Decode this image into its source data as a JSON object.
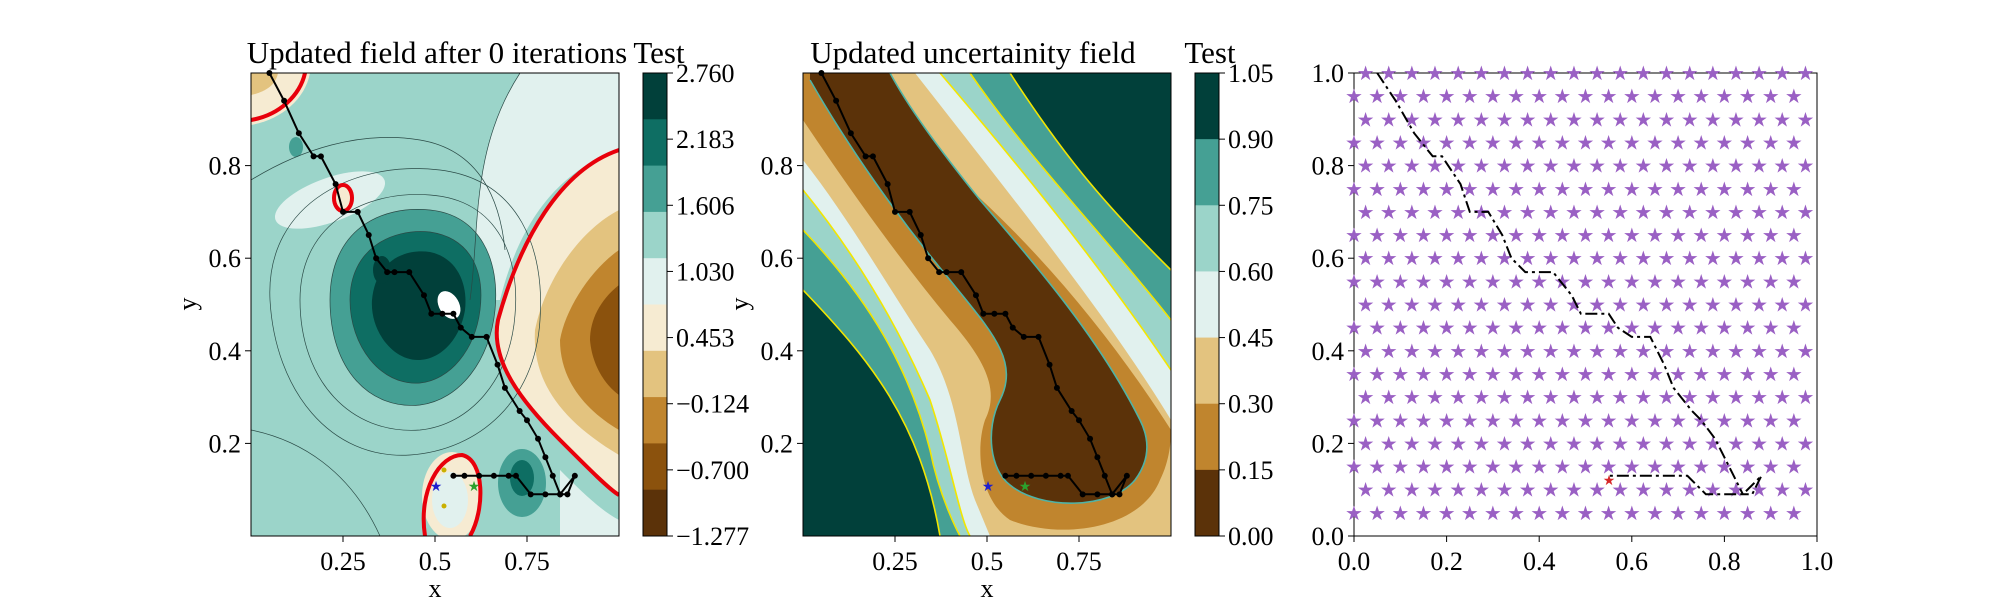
{
  "panels": [
    {
      "title": "Updated field after 0 iterations",
      "xlabel": "x",
      "ylabel": "y",
      "xticks": [
        0.25,
        0.5,
        0.75
      ],
      "yticks": [
        0.2,
        0.4,
        0.6,
        0.8
      ],
      "xlim": [
        0.0,
        1.0
      ],
      "ylim": [
        0.0,
        1.0
      ],
      "colorbar": {
        "title": "Test",
        "ticks": [
          "2.760",
          "2.183",
          "1.606",
          "1.030",
          "0.453",
          "−0.124",
          "−0.700",
          "−1.277"
        ],
        "colors": [
          "#01403a",
          "#0e6e63",
          "#45a094",
          "#9bd4c9",
          "#e1f1ee",
          "#f6ebd2",
          "#e3c37f",
          "#c0852e",
          "#8b520d",
          "#5b3209"
        ]
      }
    },
    {
      "title": "Updated uncertainity field",
      "xlabel": "x",
      "ylabel": "y",
      "xticks": [
        0.25,
        0.5,
        0.75
      ],
      "yticks": [
        0.2,
        0.4,
        0.6,
        0.8
      ],
      "xlim": [
        0.0,
        1.0
      ],
      "ylim": [
        0.0,
        1.0
      ],
      "colorbar": {
        "title": "Test",
        "ticks": [
          "1.05",
          "0.90",
          "0.75",
          "0.60",
          "0.45",
          "0.30",
          "0.15",
          "0.00"
        ],
        "colors": [
          "#01403a",
          "#45a094",
          "#9bd4c9",
          "#e1f1ee",
          "#e3c37f",
          "#c0852e",
          "#5b3209"
        ]
      }
    },
    {
      "xticks": [
        "0.0",
        "0.2",
        "0.4",
        "0.6",
        "0.8",
        "1.0"
      ],
      "yticks": [
        "0.0",
        "0.2",
        "0.4",
        "0.6",
        "0.8",
        "1.0"
      ],
      "xlim": [
        0.0,
        1.0
      ],
      "ylim": [
        0.0,
        1.0
      ],
      "marker_color": "#9a60c4",
      "start_color": "#d62728"
    }
  ],
  "chart_data": {
    "type": "line",
    "path": {
      "x": [
        0.05,
        0.09,
        0.13,
        0.17,
        0.19,
        0.23,
        0.25,
        0.29,
        0.32,
        0.34,
        0.37,
        0.39,
        0.43,
        0.47,
        0.49,
        0.52,
        0.55,
        0.57,
        0.6,
        0.64,
        0.67,
        0.69,
        0.73,
        0.75,
        0.78,
        0.8,
        0.82,
        0.84,
        0.86,
        0.88,
        0.84,
        0.8,
        0.76,
        0.72,
        0.7,
        0.66,
        0.62,
        0.58,
        0.55
      ],
      "y": [
        1.0,
        0.94,
        0.87,
        0.82,
        0.82,
        0.76,
        0.7,
        0.7,
        0.65,
        0.6,
        0.57,
        0.57,
        0.57,
        0.52,
        0.48,
        0.48,
        0.48,
        0.45,
        0.43,
        0.43,
        0.37,
        0.32,
        0.27,
        0.25,
        0.21,
        0.17,
        0.13,
        0.09,
        0.09,
        0.13,
        0.09,
        0.09,
        0.09,
        0.13,
        0.13,
        0.13,
        0.13,
        0.13,
        0.13
      ]
    },
    "grid_step": 0.05,
    "auv_position": [
      0.55,
      0.13
    ]
  }
}
